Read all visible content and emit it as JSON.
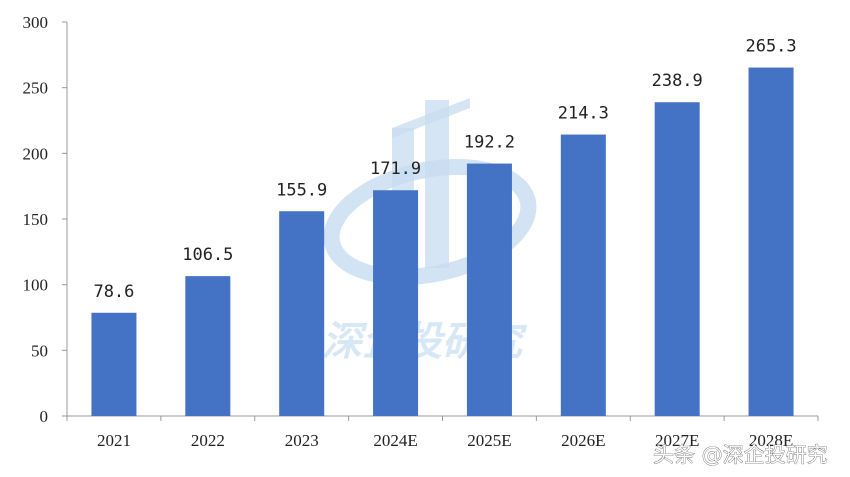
{
  "chart_data": {
    "type": "bar",
    "categories": [
      "2021",
      "2022",
      "2023",
      "2024E",
      "2025E",
      "2026E",
      "2027E",
      "2028E"
    ],
    "values": [
      78.6,
      106.5,
      155.9,
      171.9,
      192.2,
      214.3,
      238.9,
      265.3
    ],
    "data_labels": [
      "78.6",
      "106.5",
      "155.9",
      "171.9",
      "192.2",
      "214.3",
      "238.9",
      "265.3"
    ],
    "yticks": [
      "0",
      "50",
      "100",
      "150",
      "200",
      "250",
      "300"
    ],
    "ylim": [
      0,
      300
    ],
    "bar_color": "#4472c4",
    "grid": false,
    "title": "",
    "xlabel": "",
    "ylabel": ""
  },
  "watermark": {
    "text": "深企投研究"
  },
  "credit": {
    "text": "头条 @深企投研究"
  }
}
